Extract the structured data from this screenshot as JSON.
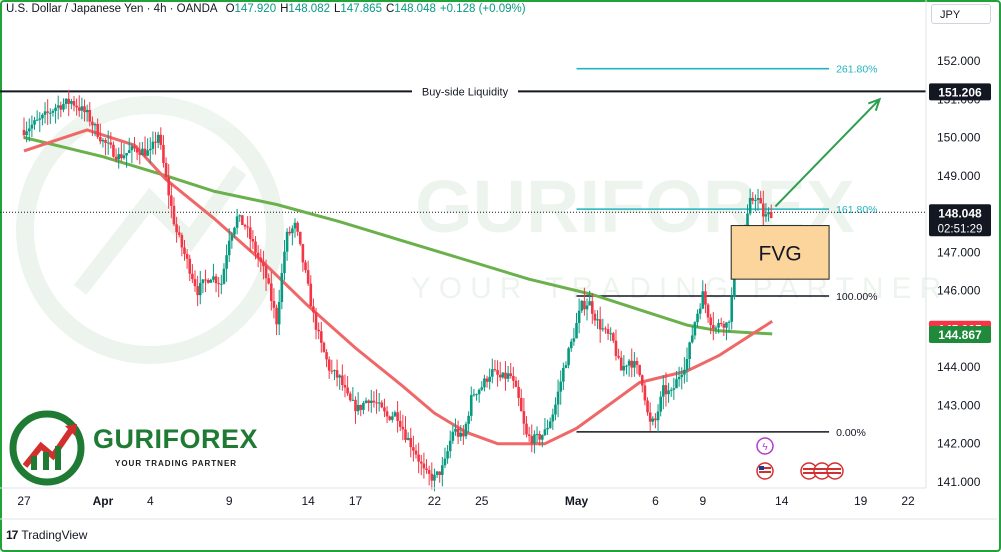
{
  "header": {
    "symbol": "U.S. Dollar / Japanese Yen · 4h · OANDA",
    "open_key": "O",
    "open": "147.920",
    "high_key": "H",
    "high": "148.082",
    "low_key": "L",
    "low": "147.865",
    "close_key": "C",
    "close": "148.048",
    "change": "+0.128 (+0.09%)",
    "currency": "JPY"
  },
  "footer": {
    "logo": "17",
    "platform": "TradingView"
  },
  "brand": {
    "name": "GURIFOREX",
    "tagline": "YOUR TRADING PARTNER"
  },
  "watermark": {
    "name": "GURIFOREX",
    "tagline": "YOUR TRADING PARTNER"
  },
  "colors": {
    "up": "#089981",
    "down": "#f23645",
    "ema_fast": "#f06767",
    "ema_slow": "#6ab04c",
    "fib": "#22b5bf",
    "arrow": "#2e9e4f",
    "fvg_fill": "#fcd59c",
    "fvg_border": "#222222",
    "last_price_bg": "#131722",
    "red_badge": "#f23645",
    "green_badge": "#1e8a3a"
  },
  "chart_data": {
    "type": "candlestick",
    "title": "U.S. Dollar / Japanese Yen · 4h · OANDA",
    "xlabel": "",
    "ylabel": "",
    "ylim": [
      141.0,
      153.0
    ],
    "y_ticks": [
      "152.000",
      "151.000",
      "150.000",
      "149.000",
      "148.000",
      "147.000",
      "146.000",
      "145.000",
      "144.000",
      "143.000",
      "142.000",
      "141.000"
    ],
    "x_ticks": [
      {
        "label": "27",
        "day": 0
      },
      {
        "label": "Apr",
        "day": 5,
        "bold": true
      },
      {
        "label": "4",
        "day": 8
      },
      {
        "label": "9",
        "day": 13
      },
      {
        "label": "14",
        "day": 18
      },
      {
        "label": "17",
        "day": 21
      },
      {
        "label": "22",
        "day": 26
      },
      {
        "label": "25",
        "day": 29
      },
      {
        "label": "May",
        "day": 35,
        "bold": true
      },
      {
        "label": "6",
        "day": 40
      },
      {
        "label": "9",
        "day": 43
      },
      {
        "label": "14",
        "day": 48
      },
      {
        "label": "19",
        "day": 53
      },
      {
        "label": "22",
        "day": 56
      }
    ],
    "xlim_days": [
      -0.6,
      60.6
    ],
    "price_path": [
      [
        0,
        150.2
      ],
      [
        1,
        150.45
      ],
      [
        2,
        150.8
      ],
      [
        3,
        150.95
      ],
      [
        4,
        150.6
      ],
      [
        5,
        149.9
      ],
      [
        6,
        149.5
      ],
      [
        7,
        149.7
      ],
      [
        8,
        149.6
      ],
      [
        8.5,
        150.1
      ],
      [
        9,
        148.9
      ],
      [
        9.6,
        147.6
      ],
      [
        10.3,
        146.8
      ],
      [
        11,
        146.0
      ],
      [
        11.8,
        146.4
      ],
      [
        12.5,
        146.2
      ],
      [
        13,
        147.4
      ],
      [
        13.5,
        147.9
      ],
      [
        14,
        147.7
      ],
      [
        14.6,
        147.1
      ],
      [
        15.3,
        146.4
      ],
      [
        16,
        145.2
      ],
      [
        16.6,
        147.4
      ],
      [
        17.2,
        147.7
      ],
      [
        17.8,
        146.5
      ],
      [
        18.3,
        145.4
      ],
      [
        18.8,
        144.6
      ],
      [
        19.4,
        143.9
      ],
      [
        20,
        143.7
      ],
      [
        20.6,
        143.1
      ],
      [
        21.2,
        142.9
      ],
      [
        21.8,
        143.2
      ],
      [
        22.4,
        143.0
      ],
      [
        23,
        142.7
      ],
      [
        23.6,
        142.8
      ],
      [
        24.2,
        142.2
      ],
      [
        24.8,
        141.8
      ],
      [
        25.4,
        141.2
      ],
      [
        26,
        141.1
      ],
      [
        26.6,
        141.4
      ],
      [
        27.2,
        142.4
      ],
      [
        27.8,
        142.1
      ],
      [
        28.4,
        143.3
      ],
      [
        29,
        143.5
      ],
      [
        29.6,
        143.9
      ],
      [
        30.2,
        143.7
      ],
      [
        30.8,
        143.8
      ],
      [
        31.3,
        143.2
      ],
      [
        31.8,
        142.2
      ],
      [
        32.4,
        142.1
      ],
      [
        33,
        142.3
      ],
      [
        33.6,
        142.9
      ],
      [
        34.2,
        144.0
      ],
      [
        34.8,
        144.8
      ],
      [
        35.3,
        145.6
      ],
      [
        35.8,
        145.7
      ],
      [
        36.3,
        145.2
      ],
      [
        36.8,
        144.9
      ],
      [
        37.3,
        144.7
      ],
      [
        37.8,
        143.9
      ],
      [
        38.3,
        144.2
      ],
      [
        38.8,
        144.0
      ],
      [
        39.2,
        143.6
      ],
      [
        39.6,
        142.5
      ],
      [
        40,
        142.6
      ],
      [
        40.5,
        143.4
      ],
      [
        41,
        143.3
      ],
      [
        41.5,
        143.8
      ],
      [
        42,
        144.2
      ],
      [
        42.5,
        145.2
      ],
      [
        43,
        145.9
      ],
      [
        43.4,
        145.3
      ],
      [
        43.8,
        145.0
      ],
      [
        44.2,
        145.2
      ],
      [
        44.6,
        145.1
      ],
      [
        45,
        146.3
      ],
      [
        45.5,
        147.1
      ],
      [
        46,
        148.3
      ],
      [
        46.4,
        148.5
      ],
      [
        46.9,
        147.9
      ],
      [
        47.4,
        148.05
      ]
    ],
    "ema_fast": [
      [
        0,
        149.65
      ],
      [
        4,
        150.2
      ],
      [
        7,
        149.8
      ],
      [
        9,
        148.9
      ],
      [
        12,
        147.9
      ],
      [
        15,
        146.8
      ],
      [
        18,
        145.6
      ],
      [
        21,
        144.5
      ],
      [
        24,
        143.5
      ],
      [
        26,
        142.8
      ],
      [
        28,
        142.3
      ],
      [
        30,
        142.0
      ],
      [
        33,
        142.0
      ],
      [
        35,
        142.4
      ],
      [
        37,
        143.0
      ],
      [
        39,
        143.6
      ],
      [
        42,
        143.9
      ],
      [
        44,
        144.3
      ],
      [
        47.4,
        145.2
      ]
    ],
    "ema_slow": [
      [
        0,
        150.0
      ],
      [
        5,
        149.5
      ],
      [
        9,
        149.0
      ],
      [
        12,
        148.6
      ],
      [
        16,
        148.25
      ],
      [
        20,
        147.8
      ],
      [
        24,
        147.3
      ],
      [
        28,
        146.8
      ],
      [
        32,
        146.3
      ],
      [
        36,
        145.9
      ],
      [
        39,
        145.5
      ],
      [
        42,
        145.1
      ],
      [
        44,
        144.95
      ],
      [
        46,
        144.9
      ],
      [
        47.4,
        144.87
      ]
    ],
    "levels": [
      {
        "label": "Buy-side Liquidity",
        "price": 151.206,
        "from_day": -0.6,
        "to_day": 58.3
      },
      {
        "label": "261.80%",
        "price": 151.8,
        "from_day": 35.0,
        "to_day": 51.0
      },
      {
        "label": "161.80%",
        "price": 148.13,
        "from_day": 35.0,
        "to_day": 51.0
      },
      {
        "label": "100.00%",
        "price": 145.86,
        "from_day": 35.0,
        "to_day": 51.0
      },
      {
        "label": "0.00%",
        "price": 142.31,
        "from_day": 35.0,
        "to_day": 51.0
      }
    ],
    "fvg": {
      "label": "FVG",
      "top": 147.7,
      "bottom": 146.3,
      "from_day": 44.8,
      "to_day": 51.0
    },
    "arrow": {
      "from": [
        47.6,
        148.2
      ],
      "to": [
        54.2,
        151.0
      ]
    },
    "price_labels": [
      {
        "text": "151.206",
        "price": 151.206,
        "style": "dark"
      },
      {
        "text": "148.048",
        "price": 148.048,
        "style": "dark",
        "sub": "02:51:29"
      },
      {
        "text": "145.005",
        "price": 145.005,
        "style": "red"
      },
      {
        "text": "144.867",
        "price": 144.867,
        "style": "green"
      }
    ],
    "grid": false,
    "legend": "none"
  }
}
